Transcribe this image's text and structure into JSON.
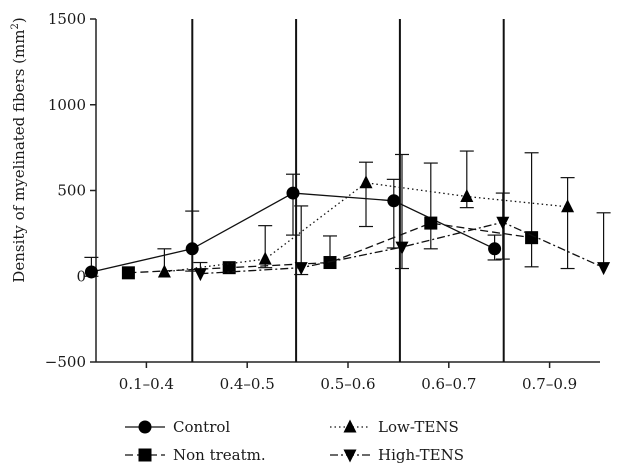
{
  "chart_data": {
    "type": "line",
    "title": "",
    "xlabel": "",
    "ylabel": "Density of myelinated fibers (mm",
    "ylabel_sup": "2",
    "ylabel_close": ")",
    "categories": [
      "0.1–0.4",
      "0.4–0.5",
      "0.5–0.6",
      "0.6–0.7",
      "0.7–0.9"
    ],
    "ylim": [
      -500,
      1500
    ],
    "yticks": [
      -500,
      0,
      500,
      1000,
      1500
    ],
    "grid": false,
    "legend_position": "bottom",
    "series": [
      {
        "name": "Control",
        "marker": "circle",
        "line": "solid",
        "values": [
          25,
          160,
          485,
          440,
          160
        ],
        "err_plus": [
          85,
          220,
          110,
          125,
          80
        ],
        "err_minus": [
          25,
          130,
          245,
          275,
          65
        ]
      },
      {
        "name": "Non treatm.",
        "marker": "square",
        "line": "dashed",
        "values": [
          20,
          50,
          80,
          310,
          225
        ],
        "err_plus": [
          0,
          0,
          155,
          350,
          495
        ],
        "err_minus": [
          0,
          0,
          0,
          150,
          170
        ]
      },
      {
        "name": "Low-TENS",
        "marker": "triangle-up",
        "line": "dotted",
        "values": [
          25,
          100,
          545,
          465,
          405
        ],
        "err_plus": [
          135,
          195,
          120,
          265,
          170
        ],
        "err_minus": [
          0,
          50,
          255,
          65,
          360
        ]
      },
      {
        "name": "High-TENS",
        "marker": "triangle-down",
        "line": "dash-dot",
        "values": [
          15,
          50,
          170,
          315,
          50
        ],
        "err_plus": [
          65,
          360,
          540,
          170,
          320
        ],
        "err_minus": [
          0,
          40,
          125,
          215,
          0
        ]
      }
    ]
  }
}
